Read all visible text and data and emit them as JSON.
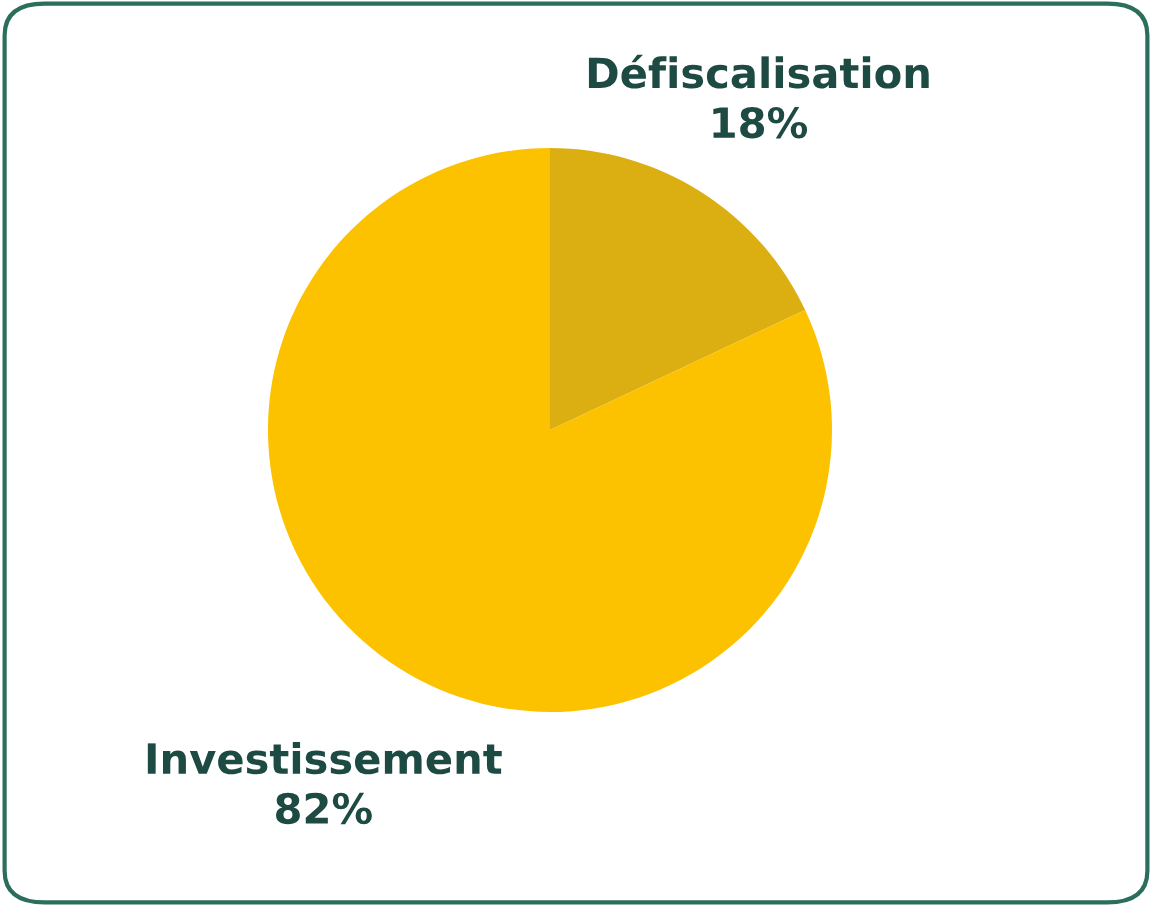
{
  "chart_data": {
    "type": "pie",
    "categories": [
      "Défiscalisation",
      "Investissement"
    ],
    "values": [
      18,
      82
    ],
    "value_labels": [
      "18%",
      "82%"
    ],
    "colors": [
      "#dbaf12",
      "#fcc200"
    ]
  }
}
